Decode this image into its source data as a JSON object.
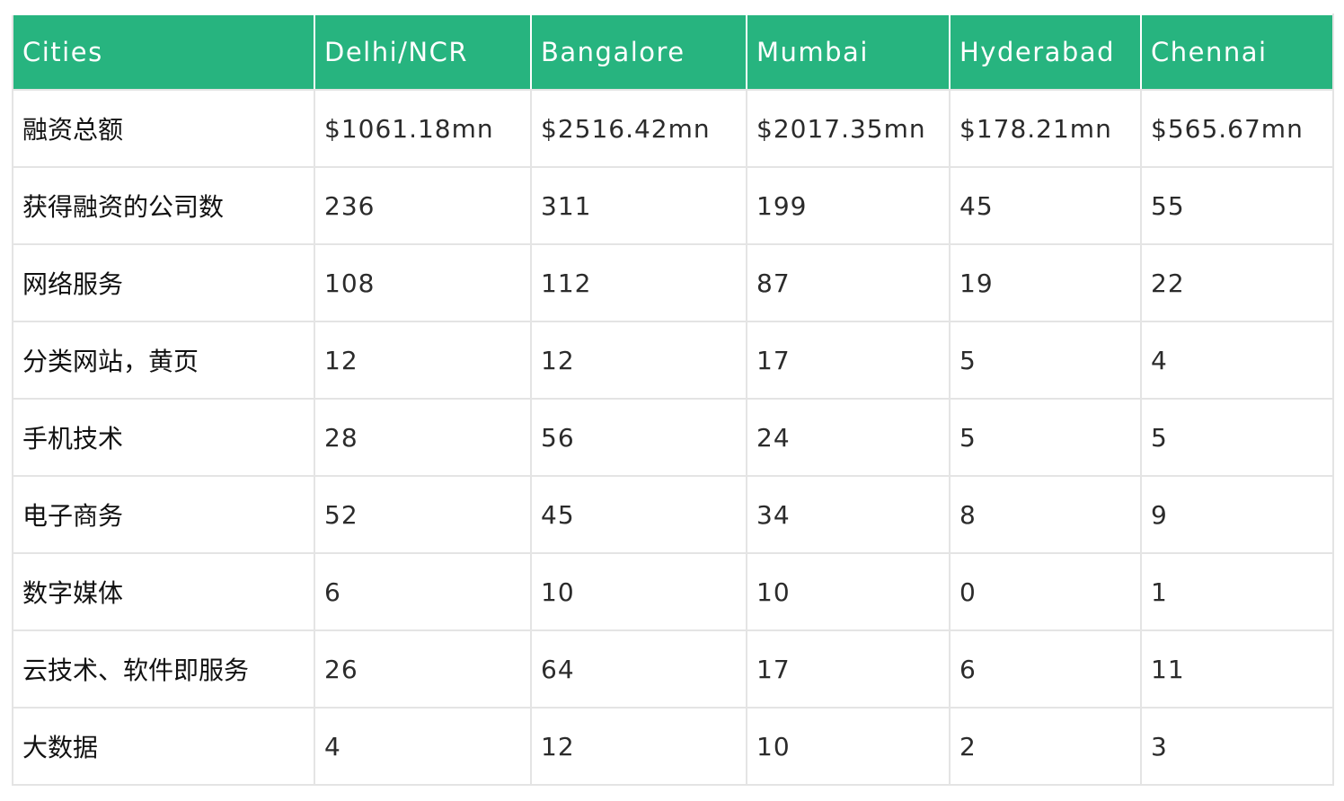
{
  "table": {
    "headers": [
      "Cities",
      "Delhi/NCR",
      "Bangalore",
      "Mumbai",
      "Hyderabad",
      "Chennai"
    ],
    "rows": [
      [
        "融资总额",
        "$1061.18mn",
        "$2516.42mn",
        "$2017.35mn",
        "$178.21mn",
        "$565.67mn"
      ],
      [
        "获得融资的公司数",
        "236",
        "311",
        "199",
        "45",
        "55"
      ],
      [
        "网络服务",
        "108",
        "112",
        "87",
        "19",
        "22"
      ],
      [
        "分类网站，黄页",
        "12",
        "12",
        "17",
        "5",
        "4"
      ],
      [
        "手机技术",
        "28",
        "56",
        "24",
        "5",
        "5"
      ],
      [
        "电子商务",
        "52",
        "45",
        "34",
        "8",
        "9"
      ],
      [
        "数字媒体",
        "6",
        "10",
        "10",
        "0",
        "1"
      ],
      [
        "云技术、软件即服务",
        "26",
        "64",
        "17",
        "6",
        "11"
      ],
      [
        "大数据",
        "4",
        "12",
        "10",
        "2",
        "3"
      ]
    ]
  },
  "colors": {
    "header_bg": "#27b47f",
    "header_text": "#ffffff",
    "grid": "#e4e4e4",
    "cell_text": "#2b2b2b"
  }
}
